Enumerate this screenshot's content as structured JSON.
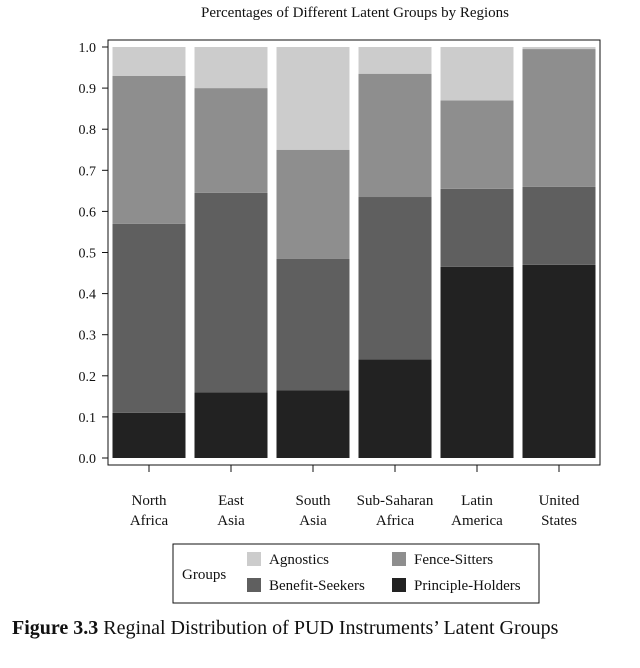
{
  "chart_data": {
    "type": "bar",
    "stacked": true,
    "title": "Percentages of Different Latent Groups by Regions",
    "categories": [
      [
        "North",
        "Africa"
      ],
      [
        "East",
        "Asia"
      ],
      [
        "South",
        "Asia"
      ],
      [
        "Sub-Saharan",
        "Africa"
      ],
      [
        "Latin",
        "America"
      ],
      [
        "United",
        "States"
      ]
    ],
    "series": [
      {
        "name": "Principle-Holders",
        "color": "#222222",
        "values": [
          0.11,
          0.16,
          0.165,
          0.24,
          0.465,
          0.47
        ]
      },
      {
        "name": "Benefit-Seekers",
        "color": "#5f5f5f",
        "values": [
          0.46,
          0.485,
          0.32,
          0.395,
          0.19,
          0.19
        ]
      },
      {
        "name": "Fence-Sitters",
        "color": "#8e8e8e",
        "values": [
          0.36,
          0.255,
          0.265,
          0.3,
          0.215,
          0.335
        ]
      },
      {
        "name": "Agnostics",
        "color": "#cccccc",
        "values": [
          0.07,
          0.1,
          0.25,
          0.065,
          0.13,
          0.005
        ]
      }
    ],
    "ylim": [
      0,
      1.0
    ],
    "yticks": [
      "0.0",
      "0.1",
      "0.2",
      "0.3",
      "0.4",
      "0.5",
      "0.6",
      "0.7",
      "0.8",
      "0.9",
      "1.0"
    ],
    "legend": {
      "title": "Groups",
      "placement": "bottom-center",
      "order": [
        "Agnostics",
        "Fence-Sitters",
        "Benefit-Seekers",
        "Principle-Holders"
      ]
    },
    "grid": false
  },
  "caption": {
    "label": "Figure 3.3",
    "text": "Reginal Distribution of PUD Instruments’ Latent Groups"
  }
}
